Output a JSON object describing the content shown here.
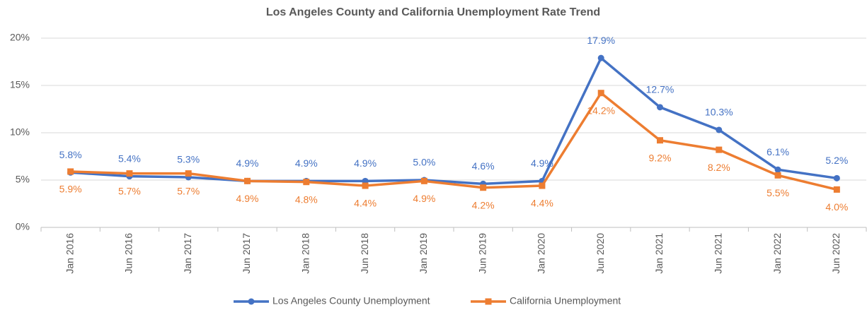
{
  "chart_data": {
    "type": "line",
    "title": "Los Angeles County and California Unemployment Rate Trend",
    "categories": [
      "Jan 2016",
      "Jun 2016",
      "Jan 2017",
      "Jun 2017",
      "Jan 2018",
      "Jun 2018",
      "Jan 2019",
      "Jun 2019",
      "Jan 2020",
      "Jun 2020",
      "Jan 2021",
      "Jun 2021",
      "Jan 2022",
      "Jun 2022"
    ],
    "series": [
      {
        "name": "Los Angeles County Unemployment",
        "color": "#4472c4",
        "values": [
          5.8,
          5.4,
          5.3,
          4.9,
          4.9,
          4.9,
          5.0,
          4.6,
          4.9,
          17.9,
          12.7,
          10.3,
          6.1,
          5.2
        ],
        "value_labels": [
          "5.8%",
          "5.4%",
          "5.3%",
          "4.9%",
          "4.9%",
          "4.9%",
          "5.0%",
          "4.6%",
          "4.9%",
          "17.9%",
          "12.7%",
          "10.3%",
          "6.1%",
          "5.2%"
        ]
      },
      {
        "name": "California Unemployment",
        "color": "#ed7d31",
        "values": [
          5.9,
          5.7,
          5.7,
          4.9,
          4.8,
          4.4,
          4.9,
          4.2,
          4.4,
          14.2,
          9.2,
          8.2,
          5.5,
          4.0
        ],
        "value_labels": [
          "5.9%",
          "5.7%",
          "5.7%",
          "4.9%",
          "4.8%",
          "4.4%",
          "4.9%",
          "4.2%",
          "4.4%",
          "14.2%",
          "9.2%",
          "8.2%",
          "5.5%",
          "4.0%"
        ]
      }
    ],
    "ylim": [
      0,
      20
    ],
    "yticks": [
      {
        "value": 0,
        "label": "0%"
      },
      {
        "value": 5,
        "label": "5%"
      },
      {
        "value": 10,
        "label": "10%"
      },
      {
        "value": 15,
        "label": "15%"
      },
      {
        "value": 20,
        "label": "20%"
      }
    ],
    "grid": true,
    "legend": "bottom"
  }
}
